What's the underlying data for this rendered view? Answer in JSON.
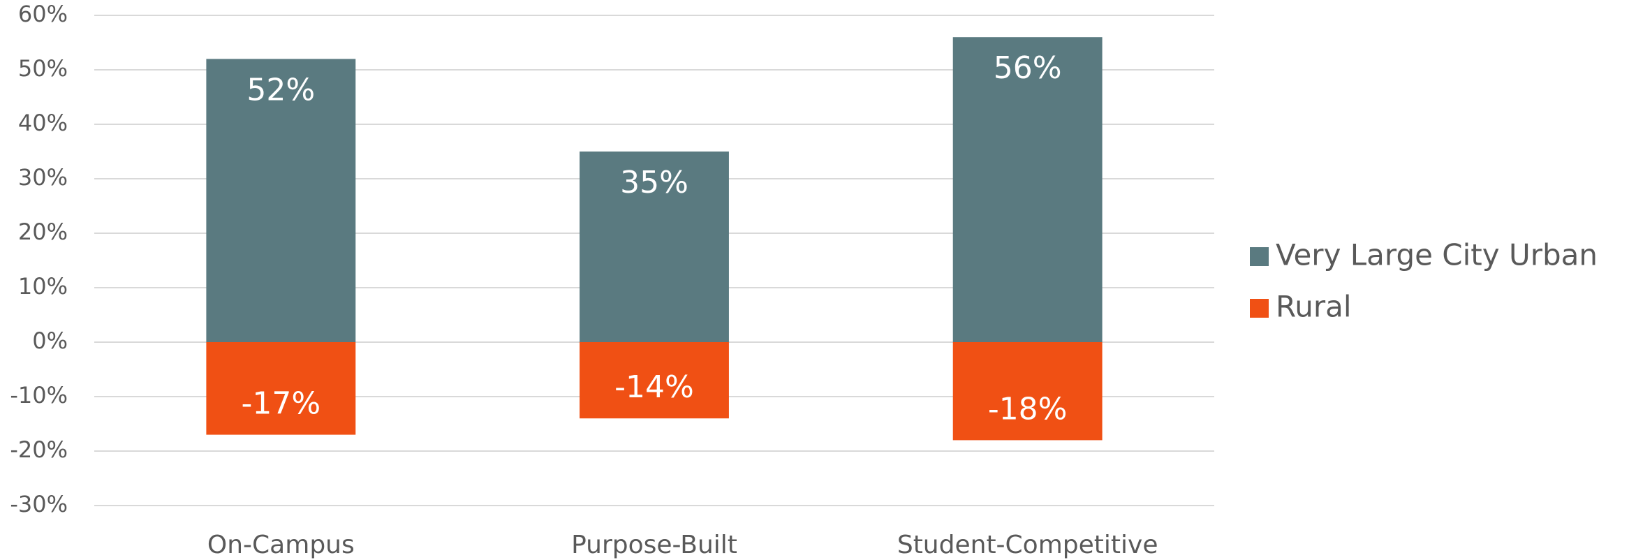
{
  "chart_data": {
    "type": "bar",
    "categories": [
      "On-Campus",
      "Purpose-Built",
      "Student-Competitive"
    ],
    "series": [
      {
        "name": "Very Large City Urban",
        "color": "#5a7a80",
        "values": [
          52,
          35,
          56
        ],
        "value_labels": [
          "52%",
          "35%",
          "56%"
        ]
      },
      {
        "name": "Rural",
        "color": "#f05014",
        "values": [
          -17,
          -14,
          -18
        ],
        "value_labels": [
          "-17%",
          "-14%",
          "-18%"
        ]
      }
    ],
    "stacked": true,
    "ylim": [
      -30,
      60
    ],
    "yticks": [
      {
        "value": -30,
        "label": "-30%"
      },
      {
        "value": -20,
        "label": "-20%"
      },
      {
        "value": -10,
        "label": "-10%"
      },
      {
        "value": 0,
        "label": "0%"
      },
      {
        "value": 10,
        "label": "10%"
      },
      {
        "value": 20,
        "label": "20%"
      },
      {
        "value": 30,
        "label": "30%"
      },
      {
        "value": 40,
        "label": "40%"
      },
      {
        "value": 50,
        "label": "50%"
      },
      {
        "value": 60,
        "label": "60%"
      }
    ],
    "grid": true,
    "legend": "right"
  }
}
